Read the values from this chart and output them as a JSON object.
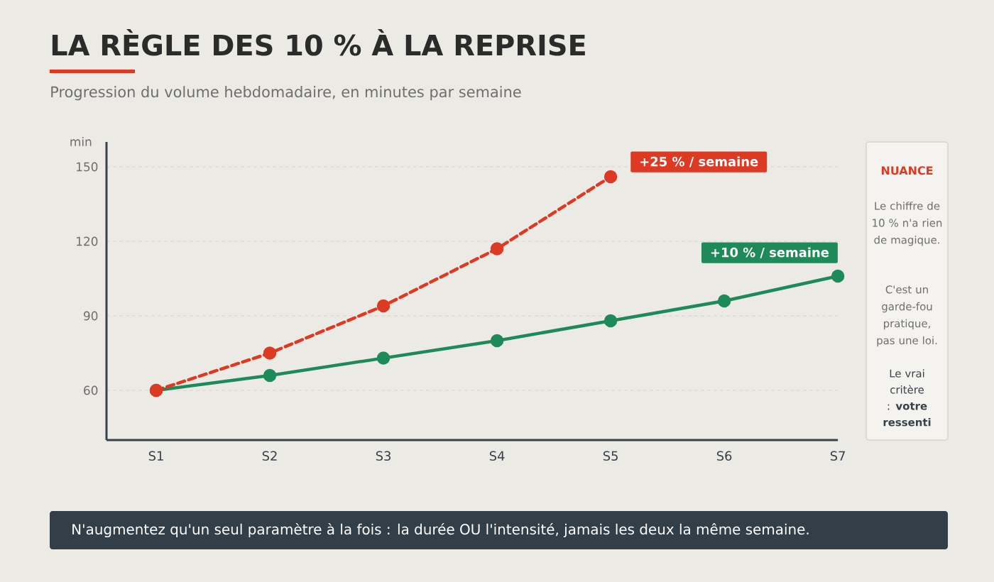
{
  "chart_data": {
    "type": "line",
    "title": "LA RÈGLE DES 10 % À LA REPRISE",
    "subtitle": "Progression du volume hebdomadaire, en minutes par semaine",
    "ylabel": "min",
    "categories": [
      "S1",
      "S2",
      "S3",
      "S4",
      "S5",
      "S6",
      "S7"
    ],
    "series": [
      {
        "name": "+25 % / semaine",
        "color": "#dd3a24",
        "values": [
          60,
          75,
          94,
          117,
          146,
          null,
          null
        ],
        "line_style": "dashed"
      },
      {
        "name": "+10 % / semaine",
        "color": "#1e8a5a",
        "values": [
          60,
          66,
          73,
          80,
          88,
          96,
          106
        ],
        "line_style": "solid"
      }
    ],
    "ylim": [
      40,
      160
    ],
    "yticks": [
      60,
      90,
      120,
      150
    ],
    "grid": "y",
    "marker": "circle",
    "annotations": [
      "NUANCE",
      "Le chiffre de 10 % n'a rien de magique.",
      "C'est un garde-fou pratique, pas une loi.",
      "Le vrai critère : **votre ressenti**",
      "N'augmentez qu'un seul paramètre à la fois : la durée OU l'intensité, jamais les deux la même semaine."
    ]
  }
}
